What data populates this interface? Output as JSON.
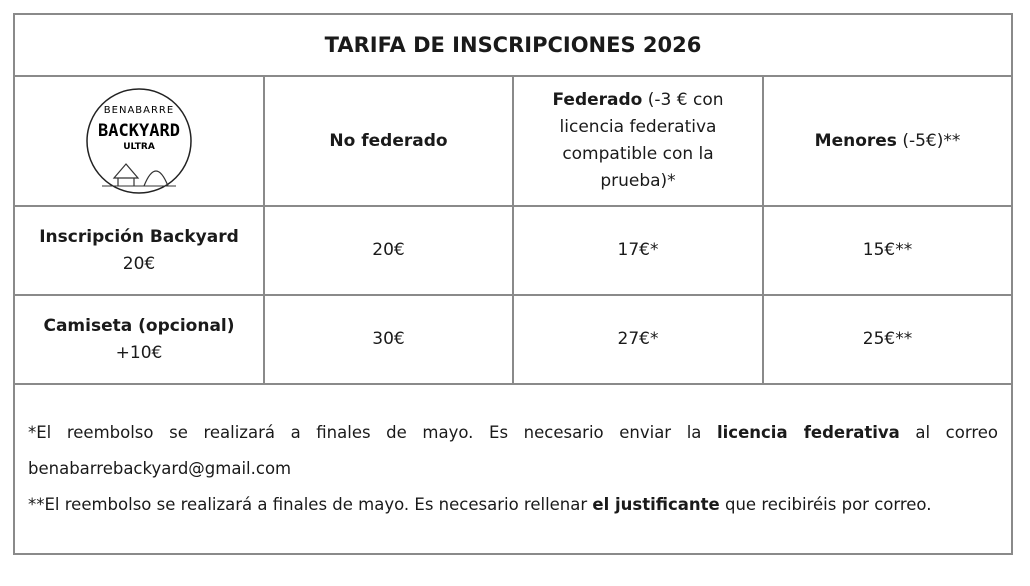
{
  "title": "TARIFA DE INSCRIPCIONES 2026",
  "logo": {
    "top": "BENABARRE",
    "main": "BACKYARD",
    "sub": "ULTRA"
  },
  "header": [
    {
      "bold": "No federado"
    },
    {
      "bold": "Federado",
      "rest": " (-3 € con licencia federativa compatible con la prueba)*"
    },
    {
      "bold": "Menores",
      "rest": " (-5€)**"
    }
  ],
  "rows": [
    {
      "label": "Inscripción Backyard",
      "price": "20€",
      "cells": [
        "20€",
        "17€*",
        "15€**"
      ]
    },
    {
      "label": "Camiseta (opcional)",
      "price": "+10€",
      "cells": [
        "30€",
        "27€*",
        "25€**"
      ]
    }
  ],
  "notes": [
    [
      "*El reembolso se realizará a finales de mayo. Es necesario enviar la ",
      "licencia federativa",
      " al correo benabarrebackyard@gmail.com"
    ],
    [
      "**El reembolso se realizará a finales de mayo. Es necesario rellenar ",
      "el justificante",
      " que recibiréis por correo."
    ]
  ]
}
